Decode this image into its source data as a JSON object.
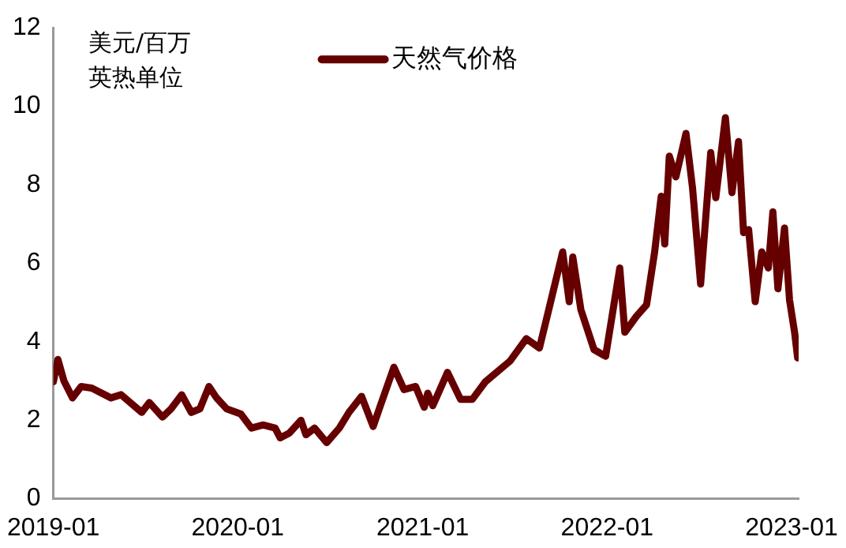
{
  "chart_data": {
    "type": "line",
    "ylabel": "美元/百万英热单位",
    "legend": "top",
    "grid": false,
    "marker": "none",
    "line_style": "solid",
    "xlim": [
      "2019-01-01",
      "2023-01-15"
    ],
    "xticks": [
      "2019-01",
      "2020-01",
      "2021-01",
      "2022-01",
      "2023-01"
    ],
    "ylim": [
      0,
      12
    ],
    "yticks": [
      0,
      2,
      4,
      6,
      8,
      10,
      12
    ],
    "series": [
      {
        "name": "天然气价格",
        "color": "#660000",
        "x": [
          "2019-01-01",
          "2019-01-10",
          "2019-01-22",
          "2019-02-08",
          "2019-02-25",
          "2019-03-18",
          "2019-04-25",
          "2019-05-15",
          "2019-06-25",
          "2019-07-10",
          "2019-08-05",
          "2019-08-22",
          "2019-09-12",
          "2019-10-01",
          "2019-10-18",
          "2019-11-05",
          "2019-11-20",
          "2019-12-10",
          "2020-01-07",
          "2020-01-28",
          "2020-02-20",
          "2020-03-15",
          "2020-03-25",
          "2020-04-12",
          "2020-05-05",
          "2020-05-15",
          "2020-06-01",
          "2020-06-25",
          "2020-07-20",
          "2020-08-08",
          "2020-09-02",
          "2020-09-25",
          "2020-10-10",
          "2020-11-05",
          "2020-11-25",
          "2020-12-18",
          "2021-01-04",
          "2021-01-11",
          "2021-01-21",
          "2021-02-19",
          "2021-03-17",
          "2021-04-09",
          "2021-05-05",
          "2021-06-23",
          "2021-07-25",
          "2021-08-20",
          "2021-09-12",
          "2021-10-05",
          "2021-10-18",
          "2021-10-25",
          "2021-11-10",
          "2021-12-06",
          "2021-12-29",
          "2022-01-26",
          "2022-02-05",
          "2022-02-28",
          "2022-03-20",
          "2022-04-05",
          "2022-04-18",
          "2022-04-25",
          "2022-05-04",
          "2022-05-17",
          "2022-06-06",
          "2022-06-19",
          "2022-07-05",
          "2022-07-25",
          "2022-08-04",
          "2022-08-23",
          "2022-09-05",
          "2022-09-18",
          "2022-09-28",
          "2022-10-08",
          "2022-10-21",
          "2022-11-03",
          "2022-11-16",
          "2022-11-25",
          "2022-12-05",
          "2022-12-18",
          "2022-12-28",
          "2023-01-07",
          "2023-01-13"
        ],
        "values": [
          2.98,
          3.55,
          3.0,
          2.57,
          2.86,
          2.82,
          2.57,
          2.65,
          2.2,
          2.45,
          2.08,
          2.29,
          2.65,
          2.2,
          2.29,
          2.86,
          2.57,
          2.29,
          2.16,
          1.8,
          1.88,
          1.8,
          1.55,
          1.67,
          2.0,
          1.63,
          1.8,
          1.43,
          1.8,
          2.2,
          2.61,
          1.84,
          2.4,
          3.35,
          2.78,
          2.86,
          2.33,
          2.69,
          2.37,
          3.22,
          2.53,
          2.53,
          2.98,
          3.51,
          4.08,
          3.84,
          5.06,
          6.29,
          5.02,
          6.16,
          4.82,
          3.8,
          3.63,
          5.88,
          4.24,
          4.65,
          4.94,
          6.29,
          7.71,
          6.49,
          8.73,
          8.2,
          9.31,
          7.92,
          5.47,
          8.82,
          7.67,
          9.71,
          7.8,
          9.1,
          6.78,
          6.86,
          5.02,
          6.29,
          5.88,
          7.31,
          5.35,
          6.9,
          5.06,
          4.24,
          3.59
        ]
      }
    ]
  }
}
